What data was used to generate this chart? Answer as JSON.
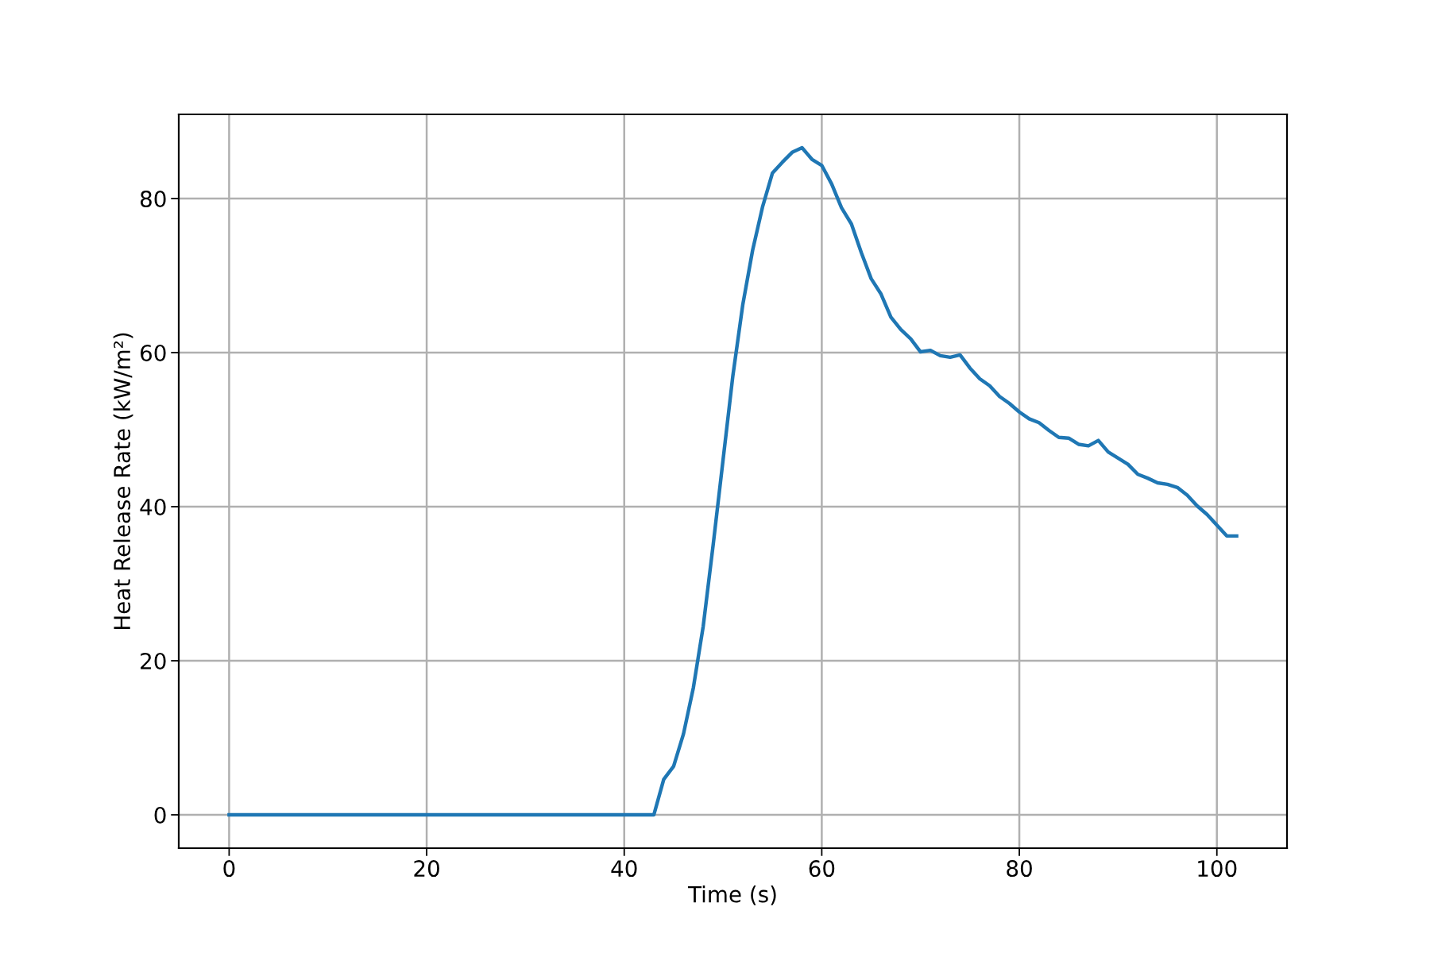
{
  "chart_data": {
    "type": "line",
    "xlabel": "Time (s)",
    "ylabel": "Heat Release Rate (kW/m²)",
    "x": [
      0,
      43,
      44,
      45,
      46,
      47,
      48,
      49,
      50,
      51,
      52,
      53,
      54,
      55,
      56,
      57,
      58,
      59,
      60,
      61,
      62,
      63,
      64,
      65,
      66,
      67,
      68,
      69,
      70,
      71,
      72,
      73,
      74,
      75,
      76,
      77,
      78,
      79,
      80,
      81,
      82,
      83,
      84,
      85,
      86,
      87,
      88,
      89,
      90,
      91,
      92,
      93,
      94,
      95,
      96,
      97,
      98,
      99,
      100,
      101,
      102
    ],
    "series": [
      {
        "color": "#1f77b4",
        "values": [
          0,
          0,
          4.6,
          6.3,
          10.5,
          16.5,
          24.5,
          35,
          46,
          57,
          66.2,
          73.3,
          78.9,
          83.3,
          84.7,
          86,
          86.6,
          85.1,
          84.3,
          81.9,
          78.8,
          76.7,
          73,
          69.6,
          67.6,
          64.6,
          63,
          61.8,
          60.1,
          60.3,
          59.6,
          59.4,
          59.7,
          58,
          56.6,
          55.7,
          54.3,
          53.4,
          52.3,
          51.4,
          50.9,
          49.9,
          49,
          48.9,
          48.1,
          47.9,
          48.6,
          47.1,
          46.3,
          45.5,
          44.2,
          43.7,
          43.1,
          42.9,
          42.5,
          41.5,
          40.1,
          39,
          37.6,
          36.2,
          36.2
        ]
      }
    ],
    "xlim": [
      -5.1,
      107.1
    ],
    "ylim": [
      -4.33,
      90.93
    ],
    "xticks": [
      0,
      20,
      40,
      60,
      80,
      100
    ],
    "yticks": [
      0,
      20,
      40,
      60,
      80
    ],
    "grid": true,
    "line_style": "solid",
    "marker": "none"
  }
}
